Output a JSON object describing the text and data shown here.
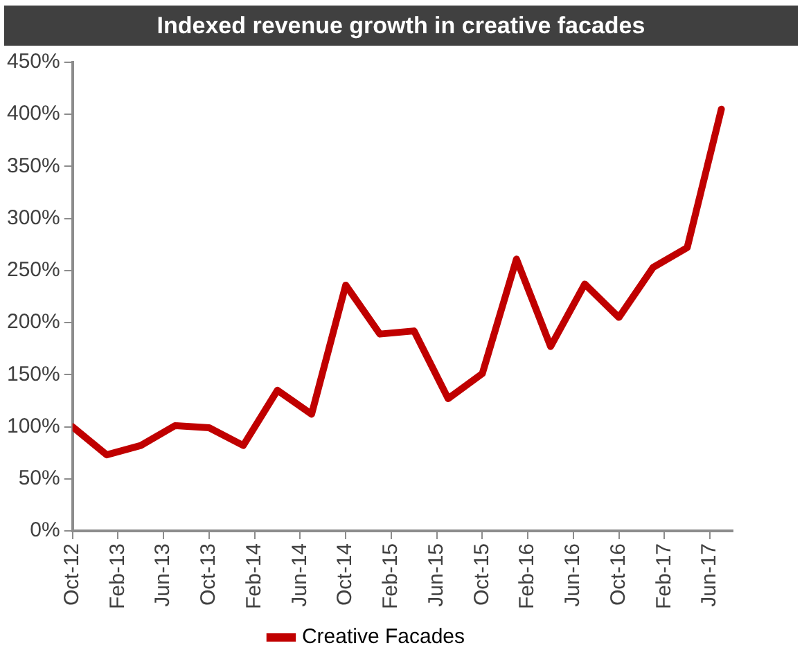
{
  "chart_data": {
    "type": "line",
    "title": "Indexed revenue growth in creative facades",
    "x": [
      "2012-10",
      "2013-01",
      "2013-04",
      "2013-07",
      "2013-10",
      "2014-01",
      "2014-04",
      "2014-07",
      "2014-10",
      "2015-01",
      "2015-04",
      "2015-07",
      "2015-10",
      "2016-01",
      "2016-04",
      "2016-07",
      "2016-10",
      "2017-01",
      "2017-04",
      "2017-07"
    ],
    "series": [
      {
        "name": "Creative Facades",
        "color": "#c00000",
        "values": [
          100,
          73,
          82,
          101,
          99,
          82,
          135,
          112,
          236,
          189,
          192,
          127,
          151,
          261,
          177,
          237,
          205,
          253,
          272,
          405
        ]
      }
    ],
    "xlim": [
      "2012-10",
      "2017-08"
    ],
    "xticks": [
      {
        "value": "2012-10",
        "label": "Oct-12"
      },
      {
        "value": "2013-02",
        "label": "Feb-13"
      },
      {
        "value": "2013-06",
        "label": "Jun-13"
      },
      {
        "value": "2013-10",
        "label": "Oct-13"
      },
      {
        "value": "2014-02",
        "label": "Feb-14"
      },
      {
        "value": "2014-06",
        "label": "Jun-14"
      },
      {
        "value": "2014-10",
        "label": "Oct-14"
      },
      {
        "value": "2015-02",
        "label": "Feb-15"
      },
      {
        "value": "2015-06",
        "label": "Jun-15"
      },
      {
        "value": "2015-10",
        "label": "Oct-15"
      },
      {
        "value": "2016-02",
        "label": "Feb-16"
      },
      {
        "value": "2016-06",
        "label": "Jun-16"
      },
      {
        "value": "2016-10",
        "label": "Oct-16"
      },
      {
        "value": "2017-02",
        "label": "Feb-17"
      },
      {
        "value": "2017-06",
        "label": "Jun-17"
      }
    ],
    "ylim": [
      0,
      450
    ],
    "yticks": [
      {
        "value": 0,
        "label": "0%"
      },
      {
        "value": 50,
        "label": "50%"
      },
      {
        "value": 100,
        "label": "100%"
      },
      {
        "value": 150,
        "label": "150%"
      },
      {
        "value": 200,
        "label": "200%"
      },
      {
        "value": 250,
        "label": "250%"
      },
      {
        "value": 300,
        "label": "300%"
      },
      {
        "value": 350,
        "label": "350%"
      },
      {
        "value": 400,
        "label": "400%"
      },
      {
        "value": 450,
        "label": "450%"
      }
    ],
    "grid": false,
    "legend": "bottom",
    "marker": "none",
    "line_style": "solid"
  }
}
